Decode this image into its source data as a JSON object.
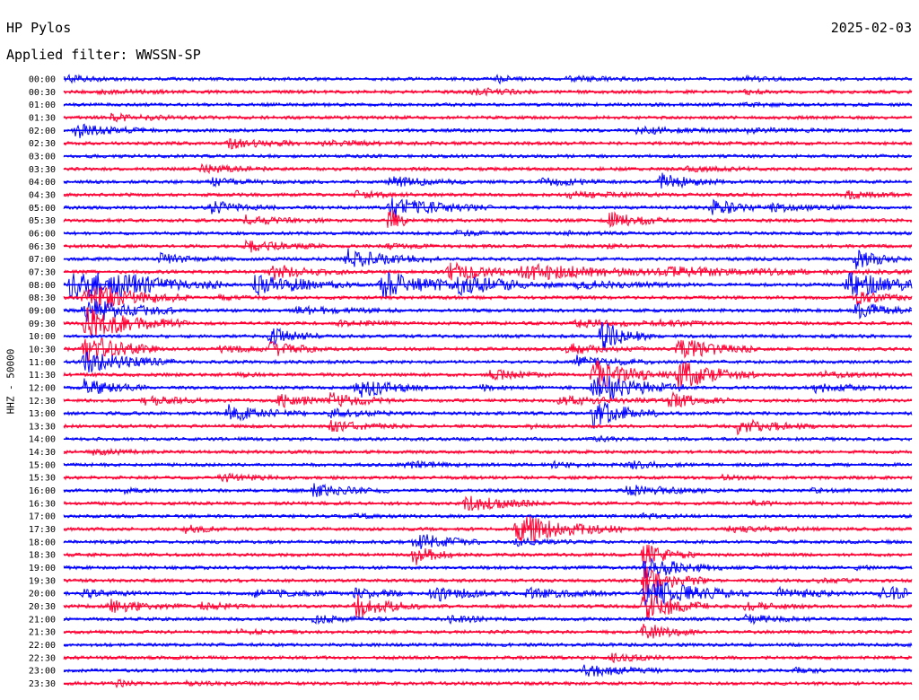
{
  "header": {
    "station": "HP Pylos",
    "date": "2025-02-03",
    "filter": "Applied filter: WWSSN-SP"
  },
  "chart_data": {
    "type": "line",
    "title": "HP Pylos",
    "subtitle": "Applied filter: WWSSN-SP",
    "ylabel": "HHZ - 50000",
    "xlabel": "",
    "grid": false,
    "colors": {
      "even": "#0000ff",
      "odd": "#ff0033"
    },
    "rows": [
      {
        "time": "00:00",
        "events": [
          [
            0.0,
            0.04,
            0.5
          ],
          [
            0.51,
            0.02,
            0.7
          ],
          [
            0.59,
            0.06,
            0.4
          ],
          [
            0.8,
            0.04,
            0.35
          ]
        ]
      },
      {
        "time": "00:30",
        "events": [
          [
            0.03,
            0.1,
            0.2
          ],
          [
            0.48,
            0.05,
            0.6
          ],
          [
            0.8,
            0.02,
            0.4
          ]
        ]
      },
      {
        "time": "01:00",
        "events": [
          [
            0.8,
            0.03,
            0.3
          ]
        ]
      },
      {
        "time": "01:30",
        "events": [
          [
            0.05,
            0.07,
            0.5
          ]
        ]
      },
      {
        "time": "02:00",
        "events": [
          [
            0.01,
            0.05,
            1.2
          ],
          [
            0.07,
            0.04,
            0.3
          ],
          [
            0.67,
            0.08,
            0.5
          ],
          [
            0.8,
            0.07,
            0.3
          ]
        ]
      },
      {
        "time": "02:30",
        "events": [
          [
            0.19,
            0.06,
            0.8
          ],
          [
            0.3,
            0.1,
            0.3
          ]
        ]
      },
      {
        "time": "03:00",
        "events": []
      },
      {
        "time": "03:30",
        "events": [
          [
            0.16,
            0.05,
            0.7
          ],
          [
            0.73,
            0.06,
            0.3
          ]
        ]
      },
      {
        "time": "04:00",
        "events": [
          [
            0.17,
            0.04,
            0.6
          ],
          [
            0.38,
            0.06,
            0.8
          ],
          [
            0.56,
            0.05,
            0.6
          ],
          [
            0.7,
            0.05,
            1.3
          ]
        ]
      },
      {
        "time": "04:30",
        "events": [
          [
            0.34,
            0.05,
            0.5
          ],
          [
            0.59,
            0.08,
            0.4
          ],
          [
            0.92,
            0.05,
            0.5
          ]
        ]
      },
      {
        "time": "05:00",
        "events": [
          [
            0.17,
            0.05,
            1.0
          ],
          [
            0.38,
            0.08,
            1.6
          ],
          [
            0.76,
            0.04,
            1.5
          ],
          [
            0.83,
            0.06,
            0.6
          ]
        ]
      },
      {
        "time": "05:30",
        "events": [
          [
            0.21,
            0.06,
            0.7
          ],
          [
            0.38,
            0.02,
            2.5
          ],
          [
            0.64,
            0.05,
            1.2
          ]
        ]
      },
      {
        "time": "06:00",
        "events": [
          [
            0.46,
            0.04,
            0.3
          ],
          [
            0.59,
            0.04,
            0.3
          ]
        ]
      },
      {
        "time": "06:30",
        "events": [
          [
            0.21,
            0.06,
            0.9
          ],
          [
            0.38,
            0.04,
            0.3
          ],
          [
            0.64,
            0.02,
            0.3
          ]
        ]
      },
      {
        "time": "07:00",
        "events": [
          [
            0.11,
            0.05,
            0.8
          ],
          [
            0.33,
            0.07,
            1.6
          ],
          [
            0.93,
            0.04,
            1.6
          ]
        ]
      },
      {
        "time": "07:30",
        "events": [
          [
            0.24,
            0.06,
            1.2
          ],
          [
            0.45,
            0.06,
            1.5
          ],
          [
            0.53,
            0.15,
            1.3
          ],
          [
            0.7,
            0.2,
            0.7
          ]
        ]
      },
      {
        "time": "08:00",
        "events": [
          [
            0.0,
            0.12,
            2.5
          ],
          [
            0.06,
            0.06,
            2.6
          ],
          [
            0.22,
            0.08,
            1.8
          ],
          [
            0.37,
            0.08,
            2.2
          ],
          [
            0.46,
            0.08,
            1.6
          ],
          [
            0.6,
            0.09,
            0.7
          ],
          [
            0.92,
            0.08,
            2.0
          ]
        ]
      },
      {
        "time": "08:30",
        "events": [
          [
            0.02,
            0.08,
            2.5
          ],
          [
            0.18,
            0.04,
            0.3
          ],
          [
            0.93,
            0.05,
            1.0
          ]
        ]
      },
      {
        "time": "09:00",
        "events": [
          [
            0.02,
            0.07,
            2.3
          ],
          [
            0.27,
            0.08,
            0.6
          ],
          [
            0.93,
            0.06,
            1.3
          ]
        ]
      },
      {
        "time": "09:30",
        "events": [
          [
            0.02,
            0.08,
            2.6
          ],
          [
            0.32,
            0.05,
            0.5
          ],
          [
            0.6,
            0.08,
            0.6
          ],
          [
            0.7,
            0.05,
            0.5
          ]
        ]
      },
      {
        "time": "10:00",
        "events": [
          [
            0.24,
            0.04,
            1.4
          ],
          [
            0.63,
            0.04,
            2.6
          ]
        ]
      },
      {
        "time": "10:30",
        "events": [
          [
            0.02,
            0.06,
            2.5
          ],
          [
            0.18,
            0.07,
            0.5
          ],
          [
            0.24,
            0.04,
            1.4
          ],
          [
            0.59,
            0.06,
            0.8
          ],
          [
            0.72,
            0.06,
            1.8
          ]
        ]
      },
      {
        "time": "11:00",
        "events": [
          [
            0.02,
            0.07,
            1.8
          ],
          [
            0.6,
            0.06,
            1.0
          ]
        ]
      },
      {
        "time": "11:30",
        "events": [
          [
            0.2,
            0.02,
            0.4
          ],
          [
            0.5,
            0.05,
            0.8
          ],
          [
            0.62,
            0.06,
            2.5
          ],
          [
            0.72,
            0.06,
            2.5
          ],
          [
            0.89,
            0.06,
            0.4
          ]
        ]
      },
      {
        "time": "12:00",
        "events": [
          [
            0.02,
            0.05,
            1.3
          ],
          [
            0.34,
            0.06,
            1.6
          ],
          [
            0.49,
            0.03,
            0.4
          ],
          [
            0.62,
            0.07,
            2.6
          ],
          [
            0.88,
            0.06,
            0.7
          ]
        ]
      },
      {
        "time": "12:30",
        "events": [
          [
            0.09,
            0.05,
            0.8
          ],
          [
            0.25,
            0.06,
            1.0
          ],
          [
            0.31,
            0.05,
            1.2
          ],
          [
            0.58,
            0.08,
            0.7
          ],
          [
            0.71,
            0.05,
            1.2
          ]
        ]
      },
      {
        "time": "13:00",
        "events": [
          [
            0.19,
            0.06,
            1.3
          ],
          [
            0.31,
            0.05,
            0.7
          ],
          [
            0.62,
            0.05,
            2.4
          ]
        ]
      },
      {
        "time": "13:30",
        "events": [
          [
            0.31,
            0.06,
            0.8
          ],
          [
            0.55,
            0.02,
            0.3
          ],
          [
            0.79,
            0.06,
            1.2
          ]
        ]
      },
      {
        "time": "14:00",
        "events": [
          [
            0.62,
            0.03,
            0.5
          ]
        ]
      },
      {
        "time": "14:30",
        "events": [
          [
            0.03,
            0.05,
            0.4
          ]
        ]
      },
      {
        "time": "15:00",
        "events": [
          [
            0.4,
            0.05,
            0.5
          ],
          [
            0.57,
            0.05,
            0.4
          ],
          [
            0.66,
            0.05,
            0.6
          ]
        ]
      },
      {
        "time": "15:30",
        "events": [
          [
            0.18,
            0.06,
            0.6
          ],
          [
            0.77,
            0.04,
            0.3
          ]
        ]
      },
      {
        "time": "16:00",
        "events": [
          [
            0.07,
            0.02,
            0.3
          ],
          [
            0.29,
            0.06,
            1.0
          ],
          [
            0.66,
            0.07,
            0.8
          ],
          [
            0.88,
            0.03,
            0.3
          ]
        ]
      },
      {
        "time": "16:30",
        "events": [
          [
            0.47,
            0.06,
            1.3
          ],
          [
            0.81,
            0.03,
            0.3
          ]
        ]
      },
      {
        "time": "17:00",
        "events": [
          [
            0.34,
            0.03,
            0.3
          ],
          [
            0.68,
            0.04,
            0.3
          ]
        ]
      },
      {
        "time": "17:30",
        "events": [
          [
            0.14,
            0.04,
            0.6
          ],
          [
            0.53,
            0.08,
            2.4
          ],
          [
            0.78,
            0.07,
            0.5
          ]
        ]
      },
      {
        "time": "18:00",
        "events": [
          [
            0.41,
            0.05,
            1.5
          ],
          [
            0.53,
            0.05,
            0.5
          ]
        ]
      },
      {
        "time": "18:30",
        "events": [
          [
            0.41,
            0.03,
            2.0
          ],
          [
            0.68,
            0.04,
            1.8
          ]
        ]
      },
      {
        "time": "19:00",
        "events": [
          [
            0.68,
            0.06,
            2.0
          ],
          [
            0.93,
            0.02,
            0.3
          ]
        ]
      },
      {
        "time": "19:30",
        "events": [
          [
            0.68,
            0.05,
            2.5
          ],
          [
            0.88,
            0.04,
            0.4
          ]
        ]
      },
      {
        "time": "20:00",
        "events": [
          [
            0.02,
            0.05,
            0.6
          ],
          [
            0.22,
            0.08,
            0.6
          ],
          [
            0.34,
            0.05,
            0.8
          ],
          [
            0.43,
            0.06,
            1.3
          ],
          [
            0.54,
            0.07,
            0.8
          ],
          [
            0.68,
            0.08,
            2.5
          ],
          [
            0.84,
            0.06,
            0.8
          ],
          [
            0.96,
            0.06,
            1.2
          ]
        ]
      },
      {
        "time": "20:30",
        "events": [
          [
            0.05,
            0.06,
            1.0
          ],
          [
            0.16,
            0.04,
            0.6
          ],
          [
            0.34,
            0.05,
            2.0
          ],
          [
            0.68,
            0.05,
            2.5
          ],
          [
            0.8,
            0.05,
            0.6
          ]
        ]
      },
      {
        "time": "21:00",
        "events": [
          [
            0.29,
            0.06,
            0.5
          ],
          [
            0.45,
            0.05,
            0.5
          ],
          [
            0.8,
            0.05,
            0.7
          ]
        ]
      },
      {
        "time": "21:30",
        "events": [
          [
            0.2,
            0.05,
            0.3
          ],
          [
            0.68,
            0.04,
            1.5
          ]
        ]
      },
      {
        "time": "22:00",
        "events": []
      },
      {
        "time": "22:30",
        "events": [
          [
            0.64,
            0.05,
            0.6
          ]
        ]
      },
      {
        "time": "23:00",
        "events": [
          [
            0.61,
            0.06,
            1.0
          ],
          [
            0.86,
            0.03,
            0.4
          ]
        ]
      },
      {
        "time": "23:30",
        "events": [
          [
            0.06,
            0.02,
            0.6
          ],
          [
            0.14,
            0.06,
            0.3
          ]
        ]
      }
    ]
  }
}
